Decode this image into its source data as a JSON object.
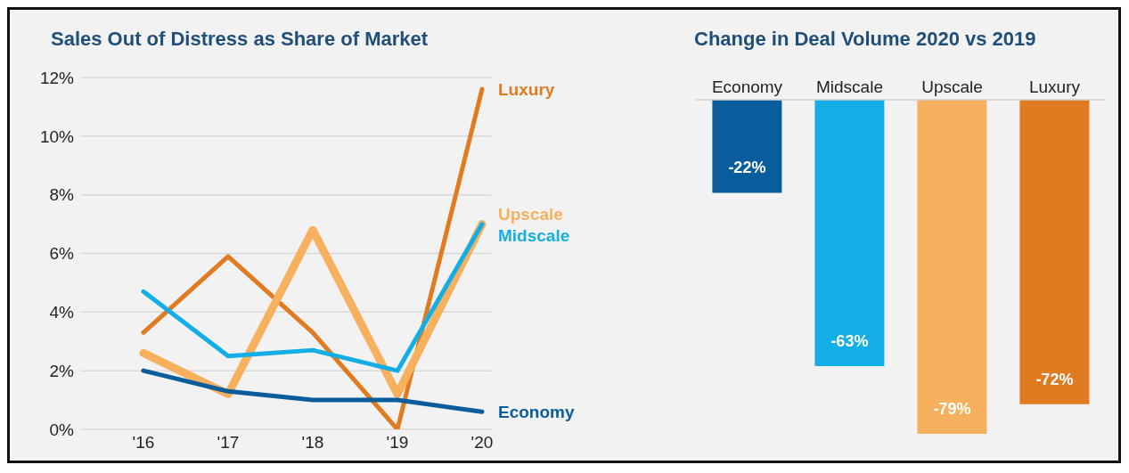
{
  "chart_data": [
    {
      "type": "line",
      "title": "Sales Out of Distress as Share of Market",
      "categories": [
        "'16",
        "'17",
        "'18",
        "'19",
        "'20"
      ],
      "series": [
        {
          "name": "Luxury",
          "color": "#e07b22",
          "values": [
            3.3,
            5.9,
            3.3,
            0.0,
            11.6
          ]
        },
        {
          "name": "Upscale",
          "color": "#f7b15e",
          "values": [
            2.6,
            1.2,
            6.8,
            1.2,
            7.0
          ]
        },
        {
          "name": "Midscale",
          "color": "#14aee6",
          "values": [
            4.7,
            2.5,
            2.7,
            2.0,
            7.0
          ]
        },
        {
          "name": "Economy",
          "color": "#0a5d9c",
          "values": [
            2.0,
            1.3,
            1.0,
            1.0,
            0.6
          ]
        }
      ],
      "ylim": [
        0,
        12
      ],
      "yticks": [
        {
          "value": 0,
          "label": "0%"
        },
        {
          "value": 2,
          "label": "2%"
        },
        {
          "value": 4,
          "label": "4%"
        },
        {
          "value": 6,
          "label": "6%"
        },
        {
          "value": 8,
          "label": "8%"
        },
        {
          "value": 10,
          "label": "10%"
        },
        {
          "value": 12,
          "label": "12%"
        }
      ],
      "grid": "y",
      "legend": false
    },
    {
      "type": "bar",
      "title": "Change in Deal Volume 2020 vs 2019",
      "categories": [
        "Economy",
        "Midscale",
        "Upscale",
        "Luxury"
      ],
      "values": [
        -22,
        -63,
        -79,
        -72
      ],
      "colors": [
        "#0a5d9c",
        "#14aee6",
        "#f7b15e",
        "#e07b22"
      ],
      "value_labels": [
        "-22%",
        "-63%",
        "-79%",
        "-72%"
      ],
      "legend": false
    }
  ]
}
